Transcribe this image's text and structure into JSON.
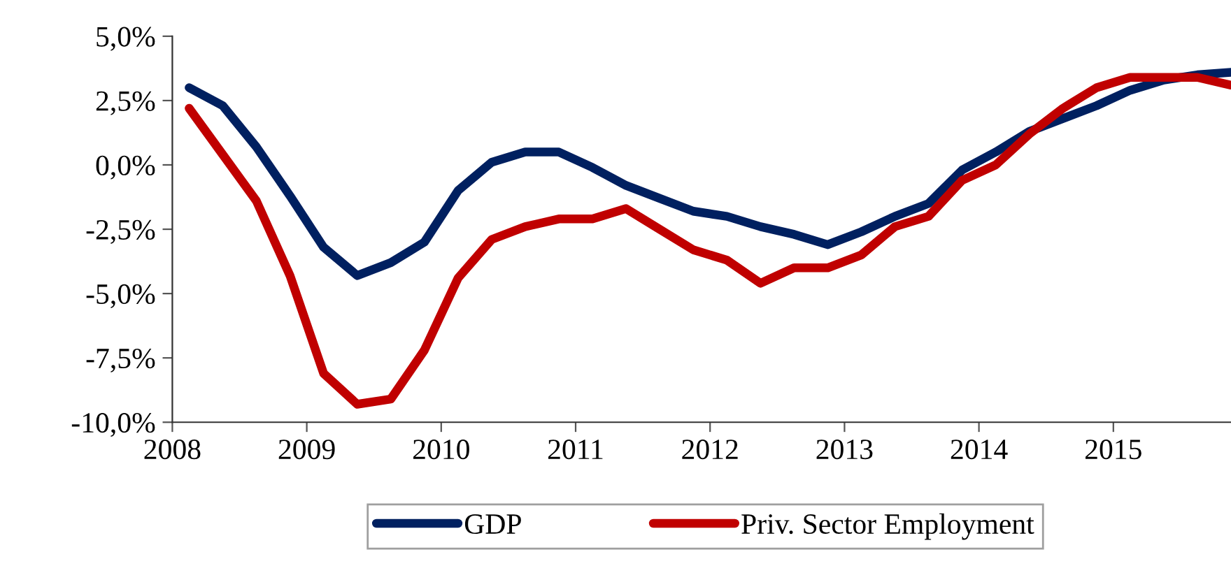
{
  "chart_data": {
    "type": "line",
    "x": [
      2008.125,
      2008.375,
      2008.625,
      2008.875,
      2009.125,
      2009.375,
      2009.625,
      2009.875,
      2010.125,
      2010.375,
      2010.625,
      2010.875,
      2011.125,
      2011.375,
      2011.625,
      2011.875,
      2012.125,
      2012.375,
      2012.625,
      2012.875,
      2013.125,
      2013.375,
      2013.625,
      2013.875,
      2014.125,
      2014.375,
      2014.625,
      2014.875,
      2015.125,
      2015.375,
      2015.625,
      2015.875
    ],
    "series": [
      {
        "name": "GDP",
        "color": "#002060",
        "values": [
          3.0,
          2.3,
          0.7,
          -1.2,
          -3.2,
          -4.3,
          -3.8,
          -3.0,
          -1.0,
          0.1,
          0.5,
          0.5,
          -0.1,
          -0.8,
          -1.3,
          -1.8,
          -2.0,
          -2.4,
          -2.7,
          -3.1,
          -2.6,
          -2.0,
          -1.5,
          -0.2,
          0.5,
          1.3,
          1.8,
          2.3,
          2.9,
          3.3,
          3.5,
          3.6
        ]
      },
      {
        "name": "Priv. Sector Employment",
        "color": "#c00000",
        "values": [
          2.2,
          0.4,
          -1.4,
          -4.3,
          -8.1,
          -9.3,
          -9.1,
          -7.2,
          -4.4,
          -2.9,
          -2.4,
          -2.1,
          -2.1,
          -1.7,
          -2.5,
          -3.3,
          -3.7,
          -4.6,
          -4.0,
          -4.0,
          -3.5,
          -2.4,
          -2.0,
          -0.6,
          0.0,
          1.2,
          2.2,
          3.0,
          3.4,
          3.4,
          3.4,
          3.1
        ]
      }
    ],
    "xlim": [
      2008,
      2015.875
    ],
    "xticks": [
      2008,
      2009,
      2010,
      2011,
      2012,
      2013,
      2014,
      2015
    ],
    "ylim": [
      -10,
      5
    ],
    "yticks": [
      {
        "value": -10,
        "label": "-10,0%"
      },
      {
        "value": -7.5,
        "label": "-7,5%"
      },
      {
        "value": -5,
        "label": "-5,0%"
      },
      {
        "value": -2.5,
        "label": "-2,5%"
      },
      {
        "value": 0,
        "label": "0,0%"
      },
      {
        "value": 2.5,
        "label": "2,5%"
      },
      {
        "value": 5,
        "label": "5,0%"
      }
    ],
    "grid": false,
    "legend": "bottom",
    "marker": "none",
    "line_style": "solid"
  }
}
